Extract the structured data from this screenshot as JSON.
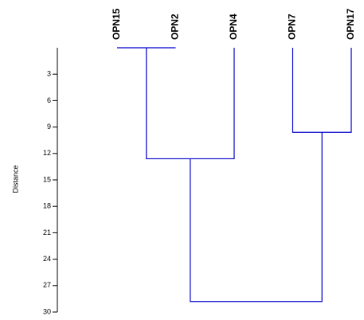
{
  "chart_data": {
    "type": "dendrogram",
    "ylabel": "Distance",
    "leaves": [
      "OPN15",
      "OPN2",
      "OPN4",
      "OPN7",
      "OPN17"
    ],
    "merges": [
      {
        "children": [
          0,
          1
        ],
        "distance": 0
      },
      {
        "children": [
          3,
          4
        ],
        "distance": 9.6
      },
      {
        "children": [
          5,
          2
        ],
        "distance": 12.6
      },
      {
        "children": [
          6,
          7
        ],
        "distance": 28.8
      }
    ],
    "color": "#0000cc",
    "ylim": [
      0,
      30
    ],
    "yticks": [
      3,
      6,
      9,
      12,
      15,
      18,
      21,
      24,
      27,
      30
    ]
  }
}
